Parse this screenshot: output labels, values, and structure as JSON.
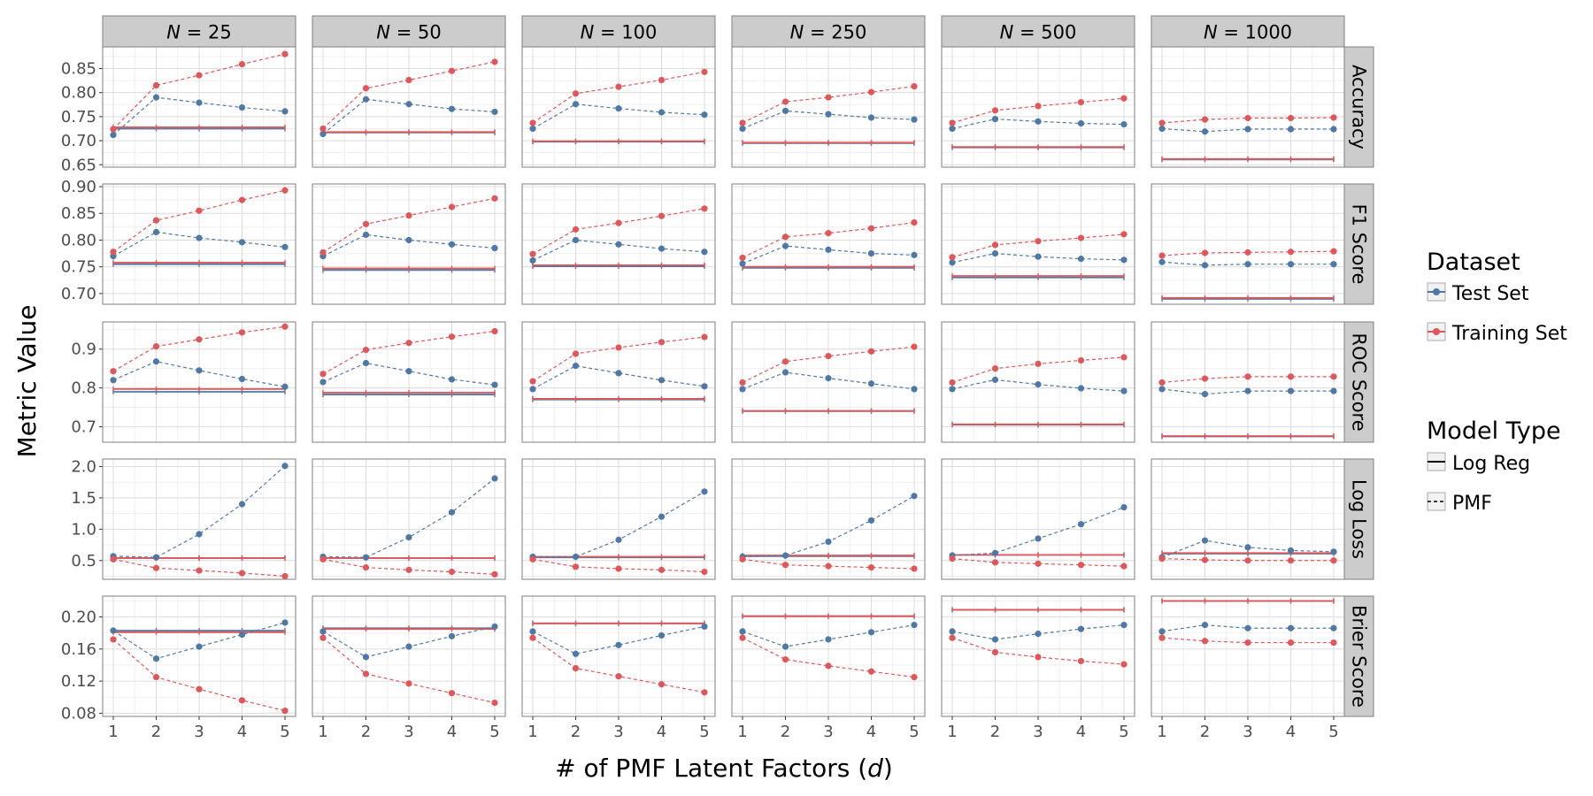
{
  "figure": {
    "ylabel": "Metric Value",
    "xlabel_prefix": "# of PMF Latent Factors (",
    "xlabel_var": "d",
    "xlabel_suffix": ")"
  },
  "legend": {
    "dataset_title": "Dataset",
    "dataset_items": [
      {
        "label": "Test Set",
        "color": "#4e79a7"
      },
      {
        "label": "Training Set",
        "color": "#e15759"
      }
    ],
    "model_title": "Model Type",
    "model_items": [
      {
        "label": "Log Reg",
        "linestyle": "solid"
      },
      {
        "label": "PMF",
        "linestyle": "dashed"
      }
    ]
  },
  "colors": {
    "test": "#4e79a7",
    "train": "#e15759",
    "strip_bg": "#cccccc",
    "panel_border": "#7f7f7f",
    "grid_major": "#dcdcdc",
    "grid_minor": "#efefef"
  },
  "chart_data": {
    "type": "line",
    "facet_columns": [
      "25",
      "50",
      "100",
      "250",
      "500",
      "1000"
    ],
    "facet_column_var": "N",
    "facet_rows": [
      {
        "label": "Accuracy",
        "ylim": [
          0.645,
          0.895
        ],
        "ticks": [
          "0.65",
          "0.70",
          "0.75",
          "0.80",
          "0.85"
        ]
      },
      {
        "label": "F1 Score",
        "ylim": [
          0.68,
          0.905
        ],
        "ticks": [
          "0.70",
          "0.75",
          "0.80",
          "0.85",
          "0.90"
        ]
      },
      {
        "label": "ROC Score",
        "ylim": [
          0.66,
          0.97
        ],
        "ticks": [
          "0.7",
          "0.8",
          "0.9"
        ]
      },
      {
        "label": "Log Loss",
        "ylim": [
          0.2,
          2.12
        ],
        "ticks": [
          "0.5",
          "1.0",
          "1.5",
          "2.0"
        ]
      },
      {
        "label": "Brier Score",
        "ylim": [
          0.076,
          0.226
        ],
        "ticks": [
          "0.08",
          "0.12",
          "0.16",
          "0.20"
        ]
      }
    ],
    "x": [
      1,
      2,
      3,
      4,
      5
    ],
    "x_ticks": [
      "1",
      "2",
      "3",
      "4",
      "5"
    ],
    "grid": true,
    "series_encoding": {
      "color": {
        "Test Set": "#4e79a7",
        "Training Set": "#e15759"
      },
      "linestyle": {
        "Log Reg": "solid",
        "PMF": "dashed"
      }
    },
    "panels": {
      "Accuracy": [
        {
          "pmf_test": [
            0.712,
            0.79,
            0.779,
            0.769,
            0.761
          ],
          "pmf_train": [
            0.724,
            0.815,
            0.836,
            0.859,
            0.88
          ],
          "lr_test": 0.725,
          "lr_train": 0.728
        },
        {
          "pmf_test": [
            0.714,
            0.786,
            0.776,
            0.766,
            0.76
          ],
          "pmf_train": [
            0.725,
            0.809,
            0.826,
            0.845,
            0.864
          ],
          "lr_test": 0.717,
          "lr_train": 0.718
        },
        {
          "pmf_test": [
            0.725,
            0.776,
            0.767,
            0.759,
            0.754
          ],
          "pmf_train": [
            0.737,
            0.798,
            0.812,
            0.826,
            0.843
          ],
          "lr_test": 0.698,
          "lr_train": 0.699
        },
        {
          "pmf_test": [
            0.725,
            0.762,
            0.755,
            0.748,
            0.744
          ],
          "pmf_train": [
            0.737,
            0.781,
            0.79,
            0.801,
            0.813
          ],
          "lr_test": 0.695,
          "lr_train": 0.696
        },
        {
          "pmf_test": [
            0.725,
            0.745,
            0.74,
            0.736,
            0.734
          ],
          "pmf_train": [
            0.737,
            0.763,
            0.772,
            0.78,
            0.788
          ],
          "lr_test": 0.686,
          "lr_train": 0.687
        },
        {
          "pmf_test": [
            0.725,
            0.719,
            0.724,
            0.724,
            0.724
          ],
          "pmf_train": [
            0.737,
            0.744,
            0.747,
            0.747,
            0.748
          ],
          "lr_test": 0.661,
          "lr_train": 0.662
        }
      ],
      "F1 Score": [
        {
          "pmf_test": [
            0.77,
            0.815,
            0.804,
            0.796,
            0.787
          ],
          "pmf_train": [
            0.778,
            0.837,
            0.855,
            0.875,
            0.893
          ],
          "lr_test": 0.755,
          "lr_train": 0.758
        },
        {
          "pmf_test": [
            0.77,
            0.81,
            0.8,
            0.792,
            0.785
          ],
          "pmf_train": [
            0.777,
            0.83,
            0.846,
            0.862,
            0.878
          ],
          "lr_test": 0.744,
          "lr_train": 0.747
        },
        {
          "pmf_test": [
            0.762,
            0.8,
            0.792,
            0.784,
            0.778
          ],
          "pmf_train": [
            0.774,
            0.82,
            0.832,
            0.845,
            0.859
          ],
          "lr_test": 0.751,
          "lr_train": 0.753
        },
        {
          "pmf_test": [
            0.756,
            0.789,
            0.782,
            0.775,
            0.772
          ],
          "pmf_train": [
            0.767,
            0.806,
            0.813,
            0.822,
            0.833
          ],
          "lr_test": 0.748,
          "lr_train": 0.75
        },
        {
          "pmf_test": [
            0.758,
            0.775,
            0.769,
            0.765,
            0.763
          ],
          "pmf_train": [
            0.768,
            0.791,
            0.798,
            0.804,
            0.811
          ],
          "lr_test": 0.73,
          "lr_train": 0.733
        },
        {
          "pmf_test": [
            0.759,
            0.753,
            0.755,
            0.755,
            0.755
          ],
          "pmf_train": [
            0.771,
            0.776,
            0.777,
            0.778,
            0.779
          ],
          "lr_test": 0.69,
          "lr_train": 0.692
        }
      ],
      "ROC Score": [
        {
          "pmf_test": [
            0.82,
            0.868,
            0.845,
            0.823,
            0.803
          ],
          "pmf_train": [
            0.843,
            0.907,
            0.925,
            0.943,
            0.958
          ],
          "lr_test": 0.79,
          "lr_train": 0.797
        },
        {
          "pmf_test": [
            0.815,
            0.864,
            0.843,
            0.822,
            0.808
          ],
          "pmf_train": [
            0.836,
            0.898,
            0.916,
            0.932,
            0.946
          ],
          "lr_test": 0.783,
          "lr_train": 0.788
        },
        {
          "pmf_test": [
            0.797,
            0.857,
            0.838,
            0.82,
            0.804
          ],
          "pmf_train": [
            0.817,
            0.888,
            0.904,
            0.918,
            0.931
          ],
          "lr_test": 0.77,
          "lr_train": 0.772
        },
        {
          "pmf_test": [
            0.797,
            0.84,
            0.825,
            0.811,
            0.797
          ],
          "pmf_train": [
            0.814,
            0.868,
            0.882,
            0.894,
            0.906
          ],
          "lr_test": 0.74,
          "lr_train": 0.741
        },
        {
          "pmf_test": [
            0.797,
            0.821,
            0.809,
            0.799,
            0.792
          ],
          "pmf_train": [
            0.814,
            0.85,
            0.862,
            0.871,
            0.879
          ],
          "lr_test": 0.705,
          "lr_train": 0.706
        },
        {
          "pmf_test": [
            0.797,
            0.784,
            0.792,
            0.792,
            0.792
          ],
          "pmf_train": [
            0.814,
            0.824,
            0.829,
            0.829,
            0.829
          ],
          "lr_test": 0.675,
          "lr_train": 0.676
        }
      ],
      "Log Loss": [
        {
          "pmf_test": [
            0.57,
            0.55,
            0.92,
            1.4,
            2.01
          ],
          "pmf_train": [
            0.52,
            0.38,
            0.34,
            0.3,
            0.25
          ],
          "lr_test": 0.54,
          "lr_train": 0.54
        },
        {
          "pmf_test": [
            0.56,
            0.55,
            0.87,
            1.27,
            1.81
          ],
          "pmf_train": [
            0.52,
            0.39,
            0.35,
            0.32,
            0.28
          ],
          "lr_test": 0.54,
          "lr_train": 0.54
        },
        {
          "pmf_test": [
            0.56,
            0.56,
            0.83,
            1.2,
            1.6
          ],
          "pmf_train": [
            0.52,
            0.4,
            0.37,
            0.35,
            0.32
          ],
          "lr_test": 0.55,
          "lr_train": 0.56
        },
        {
          "pmf_test": [
            0.56,
            0.58,
            0.8,
            1.14,
            1.53
          ],
          "pmf_train": [
            0.52,
            0.43,
            0.41,
            0.39,
            0.37
          ],
          "lr_test": 0.57,
          "lr_train": 0.58
        },
        {
          "pmf_test": [
            0.58,
            0.62,
            0.85,
            1.08,
            1.35
          ],
          "pmf_train": [
            0.53,
            0.47,
            0.45,
            0.43,
            0.41
          ],
          "lr_test": 0.59,
          "lr_train": 0.59
        },
        {
          "pmf_test": [
            0.55,
            0.82,
            0.71,
            0.66,
            0.64
          ],
          "pmf_train": [
            0.53,
            0.51,
            0.5,
            0.5,
            0.5
          ],
          "lr_test": 0.61,
          "lr_train": 0.62
        }
      ],
      "Brier Score": [
        {
          "pmf_test": [
            0.183,
            0.148,
            0.163,
            0.178,
            0.193
          ],
          "pmf_train": [
            0.172,
            0.125,
            0.11,
            0.096,
            0.083
          ],
          "lr_test": 0.183,
          "lr_train": 0.181
        },
        {
          "pmf_test": [
            0.182,
            0.15,
            0.163,
            0.176,
            0.188
          ],
          "pmf_train": [
            0.174,
            0.129,
            0.117,
            0.105,
            0.093
          ],
          "lr_test": 0.186,
          "lr_train": 0.185
        },
        {
          "pmf_test": [
            0.182,
            0.154,
            0.165,
            0.177,
            0.188
          ],
          "pmf_train": [
            0.174,
            0.136,
            0.126,
            0.116,
            0.106
          ],
          "lr_test": 0.192,
          "lr_train": 0.192
        },
        {
          "pmf_test": [
            0.182,
            0.163,
            0.172,
            0.181,
            0.19
          ],
          "pmf_train": [
            0.174,
            0.147,
            0.139,
            0.132,
            0.125
          ],
          "lr_test": 0.201,
          "lr_train": 0.201
        },
        {
          "pmf_test": [
            0.182,
            0.172,
            0.179,
            0.185,
            0.19
          ],
          "pmf_train": [
            0.174,
            0.156,
            0.15,
            0.145,
            0.141
          ],
          "lr_test": 0.209,
          "lr_train": 0.209
        },
        {
          "pmf_test": [
            0.182,
            0.19,
            0.186,
            0.186,
            0.186
          ],
          "pmf_train": [
            0.174,
            0.17,
            0.168,
            0.168,
            0.168
          ],
          "lr_test": 0.22,
          "lr_train": 0.22
        }
      ]
    }
  }
}
